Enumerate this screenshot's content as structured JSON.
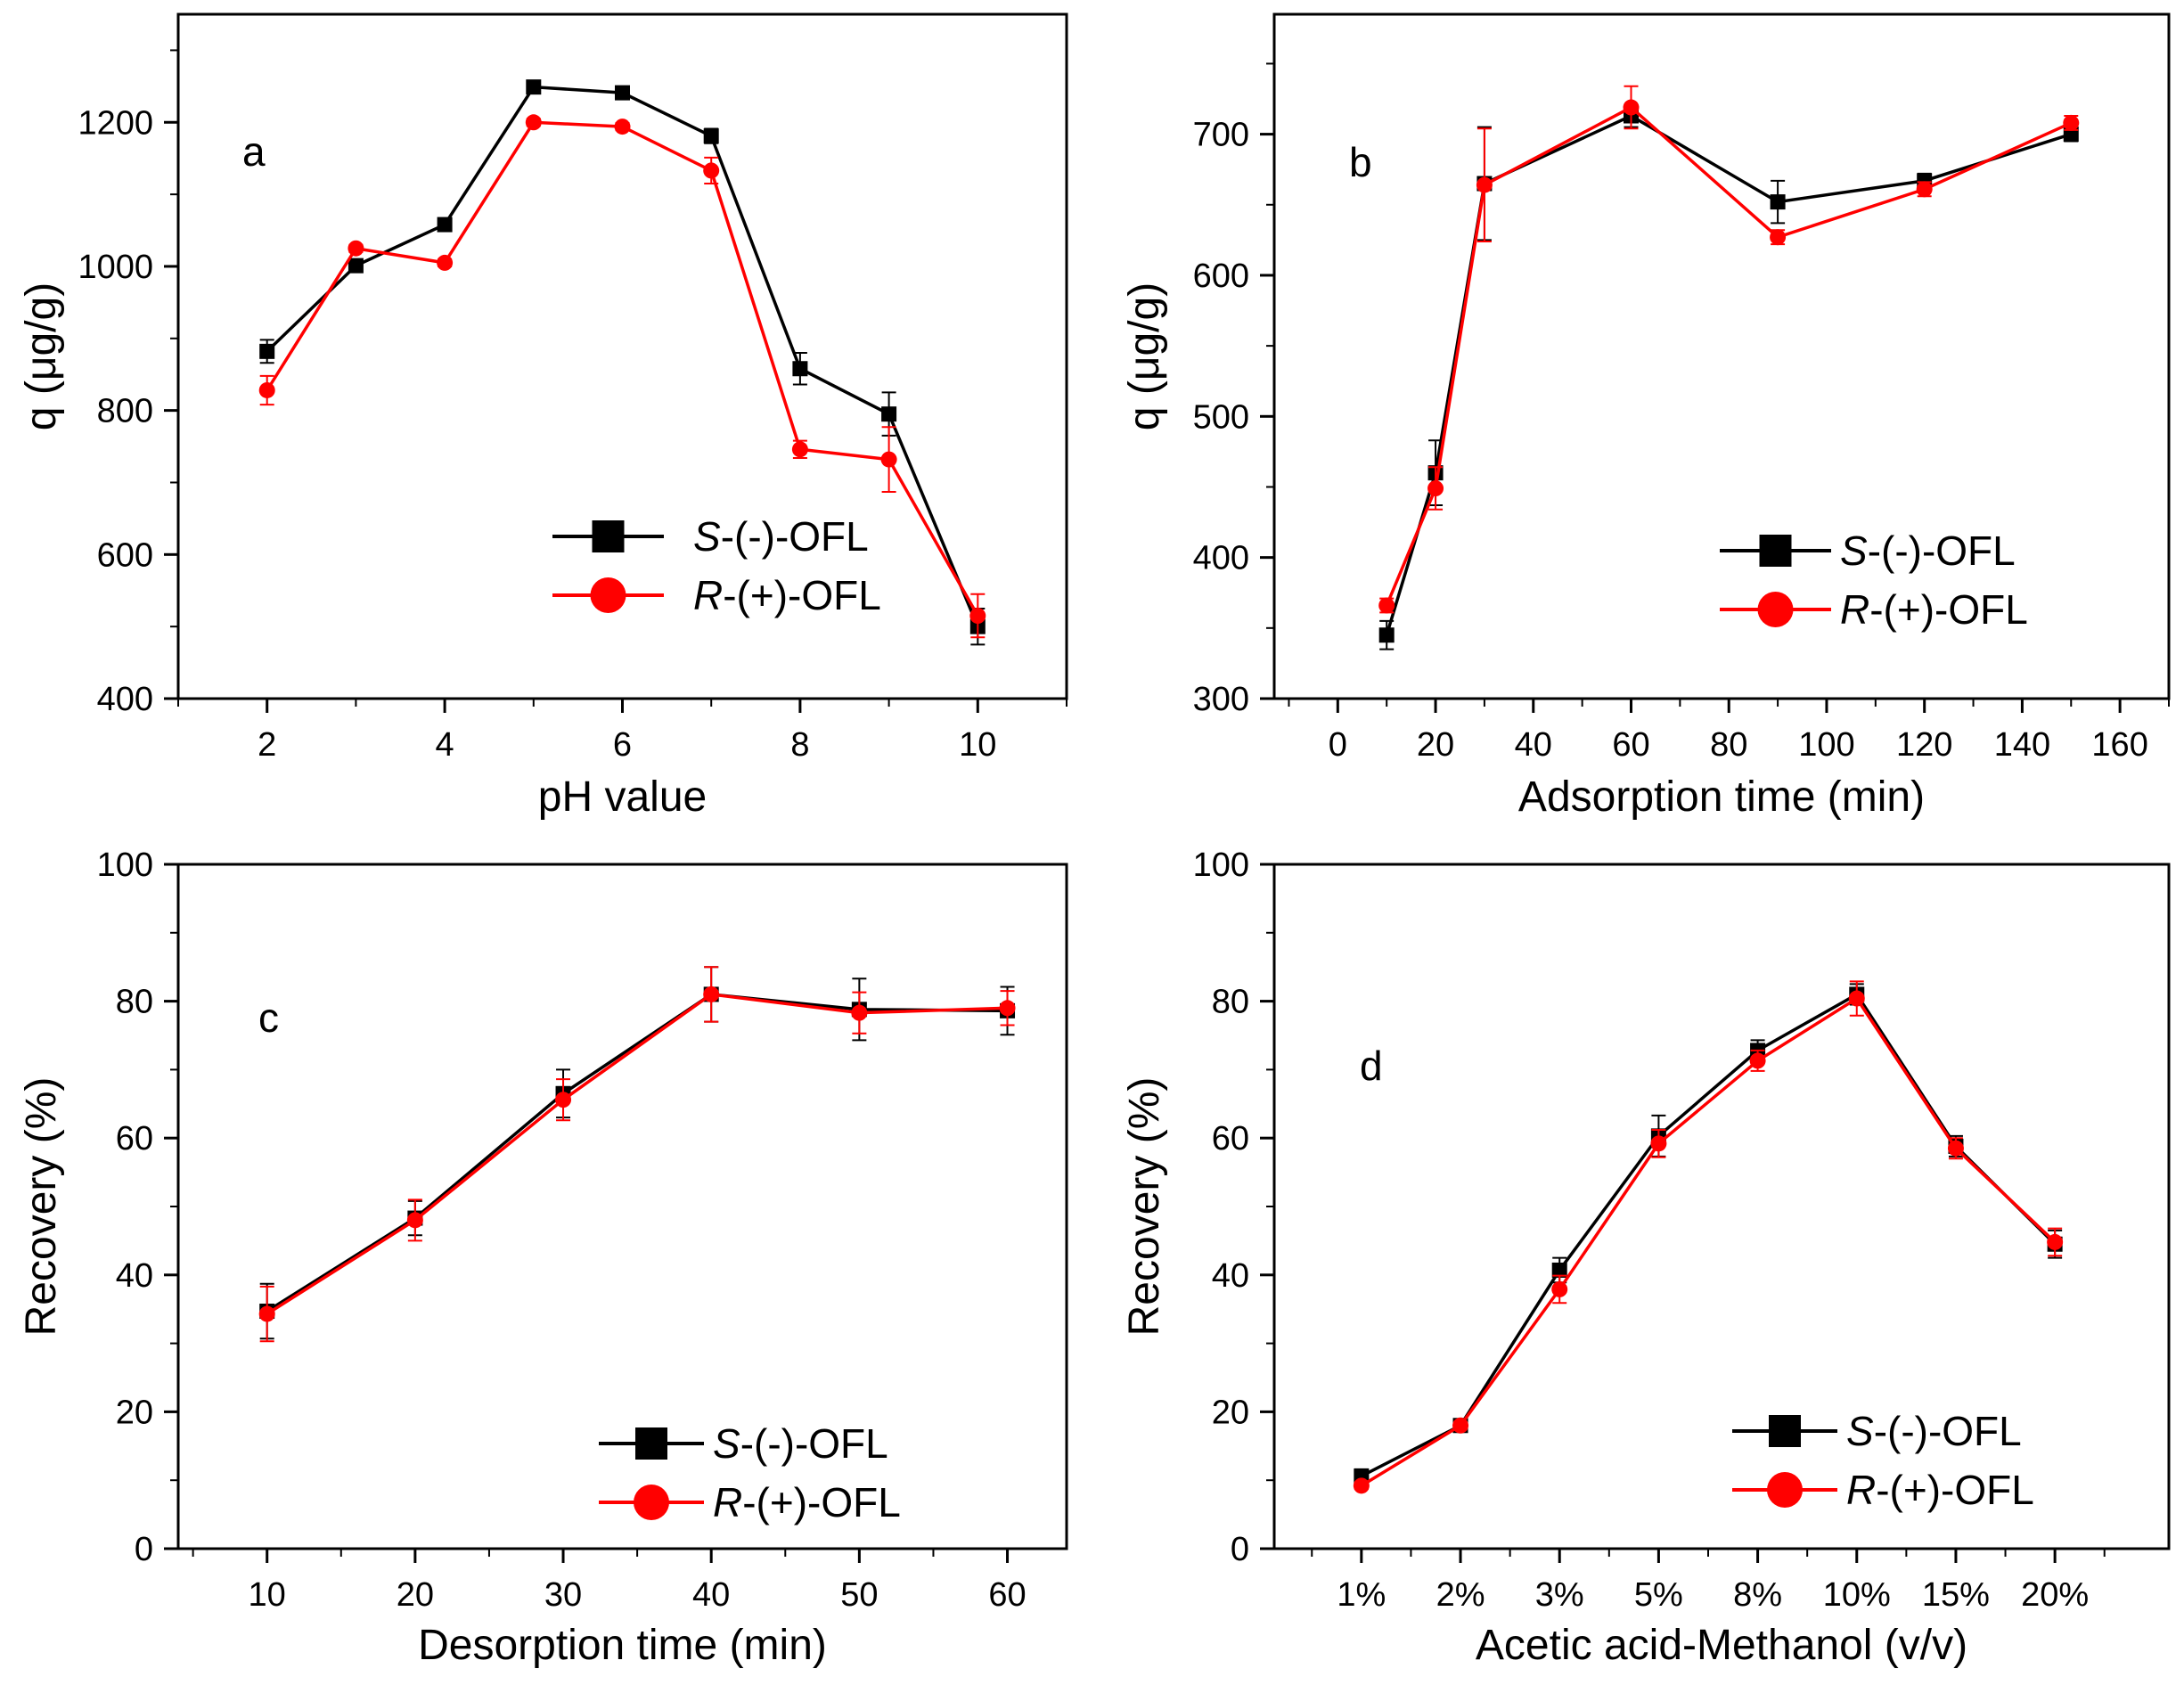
{
  "colors": {
    "s_series": "#000000",
    "r_series": "#ff0000"
  },
  "legend": {
    "s_italic": "S",
    "s_rest": "-(-)-OFL",
    "r_italic": "R",
    "r_rest": "-(+)-OFL"
  },
  "chart_data": [
    {
      "id": "a",
      "type": "line",
      "panel_label": "a",
      "xlabel": "pH value",
      "ylabel": "q (μg/g)",
      "xlim": [
        1,
        11
      ],
      "ylim": [
        400,
        1350
      ],
      "xticks": [
        2,
        4,
        6,
        8,
        10
      ],
      "yticks": [
        400,
        600,
        800,
        1000,
        1200
      ],
      "x": [
        2,
        3,
        4,
        5,
        6,
        7,
        8,
        9,
        10
      ],
      "series": [
        {
          "name": "S-(-)-OFL",
          "marker": "square",
          "values": [
            882,
            1001,
            1058,
            1249,
            1241,
            1181,
            858,
            795,
            500
          ],
          "errors": [
            16,
            5,
            6,
            5,
            5,
            10,
            22,
            30,
            25
          ]
        },
        {
          "name": "R-(+)-OFL",
          "marker": "circle",
          "values": [
            828,
            1025,
            1005,
            1200,
            1194,
            1133,
            746,
            732,
            515
          ],
          "errors": [
            20,
            5,
            5,
            5,
            5,
            18,
            12,
            45,
            30
          ]
        }
      ],
      "legend_position": "bottom-right"
    },
    {
      "id": "b",
      "type": "line",
      "panel_label": "b",
      "xlabel": "Adsorption time (min)",
      "ylabel": "q (μg/g)",
      "xlim": [
        -13,
        170
      ],
      "ylim": [
        300,
        785
      ],
      "xticks": [
        0,
        20,
        40,
        60,
        80,
        100,
        120,
        140,
        160
      ],
      "yticks": [
        300,
        400,
        500,
        600,
        700
      ],
      "x": [
        10,
        20,
        30,
        60,
        90,
        120,
        150
      ],
      "series": [
        {
          "name": "S-(-)-OFL",
          "marker": "square",
          "values": [
            345,
            460,
            665,
            713,
            652,
            667,
            700
          ],
          "errors": [
            10,
            23,
            40,
            8,
            15,
            5,
            5
          ]
        },
        {
          "name": "R-(+)-OFL",
          "marker": "circle",
          "values": [
            366,
            449,
            664,
            719,
            627,
            661,
            708
          ],
          "errors": [
            5,
            15,
            40,
            15,
            5,
            5,
            5
          ]
        }
      ],
      "legend_position": "bottom-right"
    },
    {
      "id": "c",
      "type": "line",
      "panel_label": "c",
      "xlabel": "Desorption time (min)",
      "ylabel": "Recovery (%)",
      "xlim": [
        4,
        64
      ],
      "ylim": [
        0,
        100
      ],
      "xticks": [
        10,
        20,
        30,
        40,
        50,
        60
      ],
      "yticks": [
        0,
        20,
        40,
        60,
        80,
        100
      ],
      "x": [
        10,
        20,
        30,
        40,
        50,
        60
      ],
      "series": [
        {
          "name": "S-(-)-OFL",
          "marker": "square",
          "values": [
            34.7,
            48.3,
            66.5,
            81.0,
            78.8,
            78.6
          ],
          "errors": [
            4,
            2.5,
            3.5,
            4,
            4.5,
            3.5
          ]
        },
        {
          "name": "R-(+)-OFL",
          "marker": "circle",
          "values": [
            34.3,
            48.0,
            65.6,
            81.0,
            78.3,
            79.0
          ],
          "errors": [
            4,
            3,
            3,
            4,
            3,
            2.5
          ]
        }
      ],
      "legend_position": "bottom-right"
    },
    {
      "id": "d",
      "type": "line",
      "panel_label": "d",
      "xlabel": "Acetic acid-Methanol (v/v)",
      "ylabel": "Recovery (%)",
      "xlim": [
        -0.88,
        8.15
      ],
      "ylim": [
        0,
        100
      ],
      "categories": [
        "1%",
        "2%",
        "3%",
        "5%",
        "8%",
        "10%",
        "15%",
        "20%"
      ],
      "yticks": [
        0,
        20,
        40,
        60,
        80,
        100
      ],
      "series": [
        {
          "name": "S-(-)-OFL",
          "marker": "square",
          "values": [
            10.6,
            18.0,
            40.7,
            60.3,
            72.8,
            81.0,
            58.8,
            44.5
          ],
          "errors": [
            1,
            0.8,
            1.8,
            3,
            1.5,
            1.5,
            1.5,
            2
          ]
        },
        {
          "name": "R-(+)-OFL",
          "marker": "circle",
          "values": [
            9.2,
            18.0,
            37.9,
            59.2,
            71.3,
            80.4,
            58.5,
            44.8
          ],
          "errors": [
            0.5,
            0.5,
            2,
            2,
            1.5,
            2.5,
            1.5,
            2
          ]
        }
      ],
      "legend_position": "bottom-right"
    }
  ]
}
